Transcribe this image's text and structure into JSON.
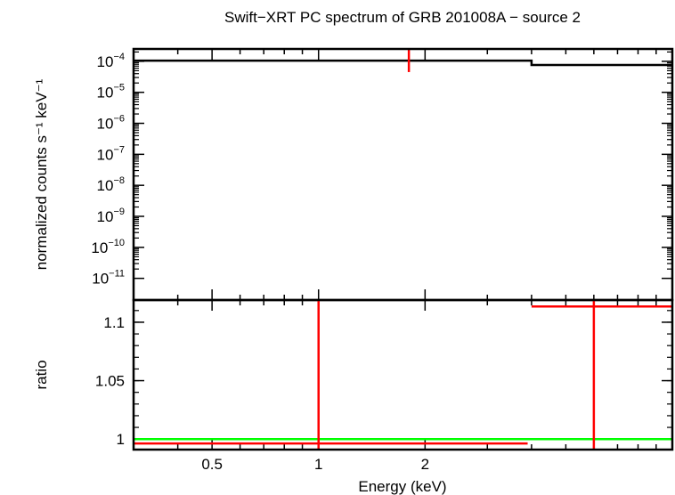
{
  "chart_data": {
    "type": "line",
    "title": "Swift−XRT PC spectrum of GRB 201008A − source 2",
    "xlabel": "Energy (keV)",
    "xscale": "log",
    "xlim": [
      0.3,
      10.0
    ],
    "xticks": [
      {
        "value": 0.5,
        "label": "0.5"
      },
      {
        "value": 1,
        "label": "1"
      },
      {
        "value": 2,
        "label": "2"
      }
    ],
    "top_panel": {
      "ylabel": "normalized counts s⁻¹ keV⁻¹",
      "yscale": "log",
      "ylim": [
        2e-12,
        0.00025
      ],
      "yticks": [
        {
          "value": 0.0001,
          "base": "10",
          "exp": "−4"
        },
        {
          "value": 1e-05,
          "base": "10",
          "exp": "−5"
        },
        {
          "value": 1e-06,
          "base": "10",
          "exp": "−6"
        },
        {
          "value": 1e-07,
          "base": "10",
          "exp": "−7"
        },
        {
          "value": 1e-08,
          "base": "10",
          "exp": "−8"
        },
        {
          "value": 1e-09,
          "base": "10",
          "exp": "−9"
        },
        {
          "value": 1e-10,
          "base": "10",
          "exp": "−10"
        },
        {
          "value": 1e-11,
          "base": "10",
          "exp": "−11"
        }
      ],
      "series": [
        {
          "kind": "model-step",
          "color": "#000000",
          "points": [
            [
              0.3,
              0.000105
            ],
            [
              4.0,
              0.000105
            ],
            [
              4.0,
              7.6e-05
            ],
            [
              10.0,
              7.6e-05
            ]
          ]
        },
        {
          "kind": "data-errorbar",
          "color": "#ff0000",
          "points": [
            {
              "x": 1.8,
              "y": 0.000105,
              "ylo": 4.5e-05,
              "yhi": 0.00025
            }
          ]
        }
      ]
    },
    "bottom_panel": {
      "ylabel": "ratio",
      "ylim": [
        0.991,
        1.119
      ],
      "yticks": [
        {
          "value": 1,
          "label": "1"
        },
        {
          "value": 1.05,
          "label": "1.05"
        },
        {
          "value": 1.1,
          "label": "1.1"
        }
      ],
      "reference_line": {
        "y": 1.0,
        "color": "#00ff00"
      },
      "series": [
        {
          "kind": "ratio-errorbar",
          "color": "#ff0000",
          "points": [
            {
              "x": 1.0,
              "xlo": 0.3,
              "xhi": 3.9,
              "y": 0.9962,
              "ylo": 0.99,
              "yhi": 1.12
            },
            {
              "x": 6.0,
              "xlo": 4.0,
              "xhi": 10.0,
              "y": 1.1135,
              "ylo": 0.99,
              "yhi": 1.12
            }
          ]
        }
      ]
    }
  }
}
